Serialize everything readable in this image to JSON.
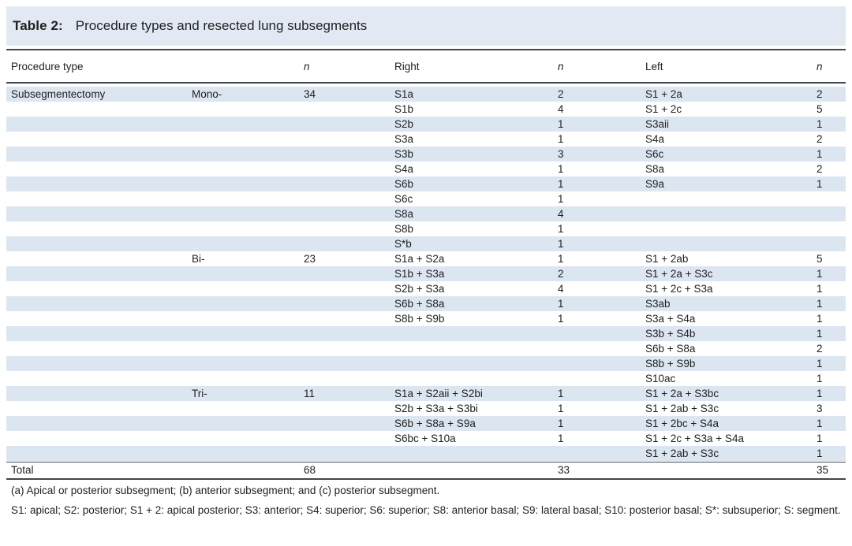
{
  "title": {
    "label": "Table 2:",
    "text": "Procedure types and resected lung subsegments"
  },
  "table": {
    "columns": [
      {
        "label": "Procedure type"
      },
      {
        "label": ""
      },
      {
        "label": "n"
      },
      {
        "label": "Right"
      },
      {
        "label": "n"
      },
      {
        "label": "Left"
      },
      {
        "label": "n"
      }
    ],
    "rows": [
      [
        "Subsegmentectomy",
        "Mono-",
        "34",
        "S1a",
        "2",
        "S1 + 2a",
        "2"
      ],
      [
        "",
        "",
        "",
        "S1b",
        "4",
        "S1 + 2c",
        "5"
      ],
      [
        "",
        "",
        "",
        "S2b",
        "1",
        "S3aii",
        "1"
      ],
      [
        "",
        "",
        "",
        "S3a",
        "1",
        "S4a",
        "2"
      ],
      [
        "",
        "",
        "",
        "S3b",
        "3",
        "S6c",
        "1"
      ],
      [
        "",
        "",
        "",
        "S4a",
        "1",
        "S8a",
        "2"
      ],
      [
        "",
        "",
        "",
        "S6b",
        "1",
        "S9a",
        "1"
      ],
      [
        "",
        "",
        "",
        "S6c",
        "1",
        "",
        ""
      ],
      [
        "",
        "",
        "",
        "S8a",
        "4",
        "",
        ""
      ],
      [
        "",
        "",
        "",
        "S8b",
        "1",
        "",
        ""
      ],
      [
        "",
        "",
        "",
        "S*b",
        "1",
        "",
        ""
      ],
      [
        "",
        "Bi-",
        "23",
        "S1a + S2a",
        "1",
        "S1 + 2ab",
        "5"
      ],
      [
        "",
        "",
        "",
        "S1b + S3a",
        "2",
        "S1 + 2a + S3c",
        "1"
      ],
      [
        "",
        "",
        "",
        "S2b + S3a",
        "4",
        "S1 + 2c + S3a",
        "1"
      ],
      [
        "",
        "",
        "",
        "S6b + S8a",
        "1",
        "S3ab",
        "1"
      ],
      [
        "",
        "",
        "",
        "S8b + S9b",
        "1",
        "S3a + S4a",
        "1"
      ],
      [
        "",
        "",
        "",
        "",
        "",
        "S3b + S4b",
        "1"
      ],
      [
        "",
        "",
        "",
        "",
        "",
        "S6b + S8a",
        "2"
      ],
      [
        "",
        "",
        "",
        "",
        "",
        "S8b + S9b",
        "1"
      ],
      [
        "",
        "",
        "",
        "",
        "",
        "S10ac",
        "1"
      ],
      [
        "",
        "Tri-",
        "11",
        "S1a + S2aii + S2bi",
        "1",
        "S1 + 2a + S3bc",
        "1"
      ],
      [
        "",
        "",
        "",
        "S2b + S3a + S3bi",
        "1",
        "S1 + 2ab + S3c",
        "3"
      ],
      [
        "",
        "",
        "",
        "S6b + S8a + S9a",
        "1",
        "S1 + 2bc + S4a",
        "1"
      ],
      [
        "",
        "",
        "",
        "S6bc + S10a",
        "1",
        "S1 + 2c + S3a + S4a",
        "1"
      ],
      [
        "",
        "",
        "",
        "",
        "",
        "S1 + 2ab + S3c",
        "1"
      ]
    ],
    "total_row": [
      "Total",
      "",
      "68",
      "",
      "33",
      "",
      "35"
    ]
  },
  "footnotes": [
    "(a) Apical or posterior subsegment; (b) anterior subsegment; and (c) posterior subsegment.",
    "S1: apical; S2: posterior; S1 + 2: apical posterior; S3: anterior; S4: superior; S6: superior; S8: anterior basal; S9: lateral basal; S10: posterior basal; S*: subsuperior; S: segment."
  ],
  "colors": {
    "title_band": "#e3e9f3",
    "row_stripe": "#dce6f1",
    "rule": "#41464c",
    "text": "#1f1f1f",
    "background": "#ffffff"
  }
}
